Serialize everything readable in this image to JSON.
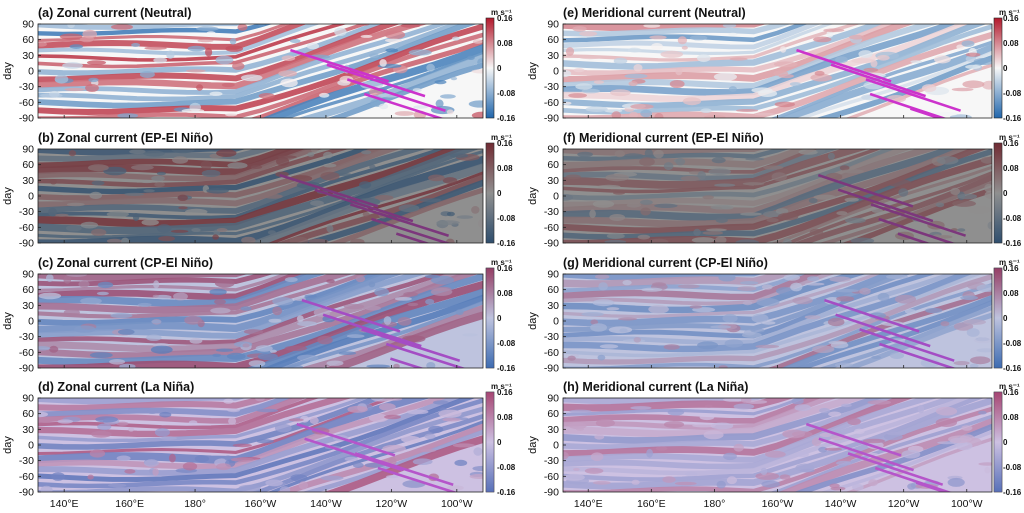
{
  "chart_data": {
    "type": "heatmap",
    "description_free": true,
    "shared": {
      "x_tick_labels": [
        "140°E",
        "160°E",
        "180°",
        "160°W",
        "140°W",
        "120°W",
        "100°W"
      ],
      "xlim_deg_east": [
        132,
        268
      ],
      "x_ticks_deg_east": [
        140,
        160,
        180,
        200,
        220,
        240,
        260
      ],
      "ylabel": "day",
      "y_ticks": [
        90,
        60,
        30,
        0,
        -30,
        -60,
        -90
      ],
      "ylim": [
        -90,
        90
      ],
      "colorbar_ticks": [
        "0.16",
        "0.08",
        "0",
        "-0.08",
        "-0.16"
      ],
      "colorbar_range": [
        -0.16,
        0.16
      ],
      "unit": "m s⁻¹",
      "colors": {
        "positive": "#b2182b",
        "negative": "#2166ac",
        "zero": "#f7f7f7",
        "lines": "#cc33cc"
      }
    },
    "panels": [
      {
        "id": "a",
        "title": "(a) Zonal current (Neutral)",
        "column": "left",
        "row": 0,
        "overlay": "#ffffff",
        "overlay_opacity": 0
      },
      {
        "id": "b",
        "title": "(b) Zonal current (EP-El Niño)",
        "column": "left",
        "row": 1,
        "overlay": "#3a3a3a",
        "overlay_opacity": 0.55
      },
      {
        "id": "c",
        "title": "(c) Zonal current (CP-El Niño)",
        "column": "left",
        "row": 2,
        "overlay": "#6a76b8",
        "overlay_opacity": 0.4
      },
      {
        "id": "d",
        "title": "(d) Zonal current (La Niña)",
        "column": "left",
        "row": 3,
        "overlay": "#9a7ec8",
        "overlay_opacity": 0.45
      },
      {
        "id": "e",
        "title": "(e) Meridional current (Neutral)",
        "column": "right",
        "row": 0,
        "overlay": "#ffffff",
        "overlay_opacity": 0
      },
      {
        "id": "f",
        "title": "(f) Meridional current (EP-El Niño)",
        "column": "right",
        "row": 1,
        "overlay": "#3a3a3a",
        "overlay_opacity": 0.55
      },
      {
        "id": "g",
        "title": "(g) Meridional current (CP-El Niño)",
        "column": "right",
        "row": 2,
        "overlay": "#6a76b8",
        "overlay_opacity": 0.4
      },
      {
        "id": "h",
        "title": "(h) Meridional current (La Niña)",
        "column": "right",
        "row": 3,
        "overlay": "#9a7ec8",
        "overlay_opacity": 0.45
      }
    ]
  }
}
